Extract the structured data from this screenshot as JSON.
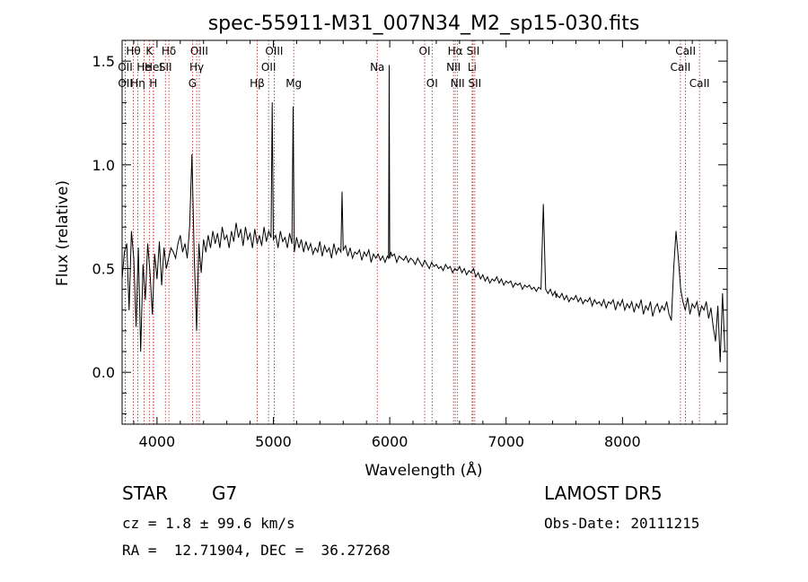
{
  "footer": {
    "object_type": "STAR",
    "subclass": "G7",
    "survey": "LAMOST DR5",
    "velocity": "cz = 1.8 ± 99.6 km/s",
    "obs_date": "Obs-Date: 20111215",
    "coords": "RA =  12.71904, DEC =  36.27268"
  },
  "chart_data": {
    "type": "line",
    "title": "spec-55911-M31_007N34_M2_sp15-030.fits",
    "xlabel": "Wavelength (Å)",
    "ylabel": "Flux (relative)",
    "xlim": [
      3700,
      8900
    ],
    "ylim": [
      -0.25,
      1.6
    ],
    "xticks": [
      4000,
      5000,
      6000,
      7000,
      8000
    ],
    "yticks": [
      0.0,
      0.5,
      1.0,
      1.5
    ],
    "ytick_labels": [
      "0.0",
      "0.5",
      "1.0",
      "1.5"
    ],
    "grid": false,
    "line_color": "#000000",
    "marker_color": "#b22222",
    "series": [
      {
        "x": [
          3700,
          3720,
          3740,
          3760,
          3780,
          3800,
          3820,
          3840,
          3860,
          3880,
          3900,
          3920,
          3940,
          3960,
          3980,
          4000,
          4020,
          4040,
          4060,
          4080,
          4100,
          4120,
          4140,
          4160,
          4180,
          4200,
          4220,
          4240,
          4260,
          4280,
          4300,
          4320,
          4340,
          4360,
          4380,
          4400,
          4420,
          4440,
          4460,
          4480,
          4500,
          4520,
          4540,
          4560,
          4580,
          4600,
          4620,
          4640,
          4660,
          4680,
          4700,
          4720,
          4740,
          4760,
          4780,
          4800,
          4820,
          4840,
          4860,
          4880,
          4900,
          4920,
          4940,
          4960,
          4980,
          4990,
          5000,
          5020,
          5040,
          5060,
          5080,
          5100,
          5120,
          5140,
          5160,
          5170,
          5180,
          5200,
          5220,
          5240,
          5260,
          5280,
          5300,
          5320,
          5340,
          5360,
          5380,
          5400,
          5420,
          5440,
          5460,
          5480,
          5500,
          5520,
          5540,
          5560,
          5580,
          5590,
          5600,
          5620,
          5640,
          5660,
          5680,
          5700,
          5720,
          5740,
          5760,
          5780,
          5800,
          5820,
          5840,
          5860,
          5880,
          5900,
          5920,
          5940,
          5960,
          5980,
          5990,
          5995,
          6000,
          6010,
          6020,
          6040,
          6060,
          6080,
          6100,
          6120,
          6140,
          6160,
          6180,
          6200,
          6220,
          6240,
          6260,
          6280,
          6300,
          6320,
          6340,
          6360,
          6380,
          6400,
          6420,
          6440,
          6460,
          6480,
          6500,
          6520,
          6540,
          6560,
          6580,
          6600,
          6620,
          6640,
          6660,
          6680,
          6700,
          6720,
          6740,
          6760,
          6780,
          6800,
          6820,
          6840,
          6860,
          6880,
          6900,
          6920,
          6940,
          6960,
          6980,
          7000,
          7020,
          7040,
          7060,
          7080,
          7100,
          7120,
          7140,
          7160,
          7180,
          7200,
          7220,
          7240,
          7260,
          7280,
          7300,
          7320,
          7340,
          7360,
          7380,
          7400,
          7420,
          7430,
          7435,
          7440,
          7460,
          7480,
          7500,
          7520,
          7540,
          7560,
          7580,
          7600,
          7620,
          7640,
          7660,
          7680,
          7700,
          7720,
          7740,
          7760,
          7780,
          7800,
          7820,
          7840,
          7860,
          7880,
          7900,
          7920,
          7940,
          7960,
          7980,
          8000,
          8020,
          8040,
          8060,
          8080,
          8100,
          8120,
          8140,
          8160,
          8180,
          8200,
          8220,
          8240,
          8260,
          8280,
          8300,
          8320,
          8340,
          8360,
          8380,
          8400,
          8420,
          8440,
          8460,
          8480,
          8500,
          8520,
          8540,
          8560,
          8580,
          8600,
          8620,
          8640,
          8660,
          8680,
          8700,
          8720,
          8740,
          8760,
          8780,
          8800,
          8820,
          8840,
          8860,
          8880
        ],
        "y": [
          0.45,
          0.58,
          0.62,
          0.3,
          0.68,
          0.55,
          0.22,
          0.6,
          0.1,
          0.52,
          0.35,
          0.62,
          0.48,
          0.28,
          0.57,
          0.45,
          0.63,
          0.42,
          0.6,
          0.5,
          0.55,
          0.6,
          0.58,
          0.55,
          0.62,
          0.66,
          0.58,
          0.62,
          0.55,
          0.7,
          1.05,
          0.55,
          0.2,
          0.62,
          0.48,
          0.64,
          0.58,
          0.66,
          0.6,
          0.68,
          0.62,
          0.67,
          0.6,
          0.7,
          0.64,
          0.66,
          0.6,
          0.68,
          0.63,
          0.72,
          0.65,
          0.69,
          0.61,
          0.7,
          0.64,
          0.67,
          0.6,
          0.69,
          0.62,
          0.66,
          0.61,
          0.7,
          0.63,
          0.68,
          0.65,
          1.3,
          0.64,
          0.66,
          0.6,
          0.68,
          0.63,
          0.65,
          0.6,
          0.67,
          0.62,
          1.28,
          0.58,
          0.65,
          0.6,
          0.64,
          0.58,
          0.63,
          0.59,
          0.62,
          0.57,
          0.6,
          0.58,
          0.63,
          0.56,
          0.61,
          0.58,
          0.6,
          0.55,
          0.62,
          0.57,
          0.6,
          0.58,
          0.87,
          0.59,
          0.61,
          0.56,
          0.6,
          0.55,
          0.58,
          0.57,
          0.59,
          0.54,
          0.58,
          0.56,
          0.59,
          0.53,
          0.57,
          0.55,
          0.57,
          0.54,
          0.56,
          0.53,
          0.56,
          0.55,
          1.48,
          0.55,
          0.58,
          0.56,
          0.57,
          0.53,
          0.56,
          0.55,
          0.54,
          0.56,
          0.53,
          0.55,
          0.54,
          0.52,
          0.55,
          0.53,
          0.51,
          0.54,
          0.52,
          0.5,
          0.53,
          0.51,
          0.52,
          0.5,
          0.51,
          0.49,
          0.52,
          0.5,
          0.51,
          0.48,
          0.5,
          0.49,
          0.51,
          0.48,
          0.5,
          0.47,
          0.49,
          0.48,
          0.5,
          0.46,
          0.48,
          0.45,
          0.47,
          0.44,
          0.46,
          0.43,
          0.45,
          0.44,
          0.46,
          0.43,
          0.45,
          0.42,
          0.44,
          0.43,
          0.44,
          0.41,
          0.43,
          0.42,
          0.43,
          0.4,
          0.42,
          0.41,
          0.42,
          0.4,
          0.41,
          0.39,
          0.41,
          0.4,
          0.81,
          0.4,
          0.38,
          0.4,
          0.37,
          0.39,
          0.36,
          0.38,
          0.37,
          0.36,
          0.38,
          0.35,
          0.37,
          0.34,
          0.36,
          0.35,
          0.37,
          0.34,
          0.36,
          0.33,
          0.35,
          0.34,
          0.36,
          0.32,
          0.35,
          0.33,
          0.34,
          0.32,
          0.35,
          0.31,
          0.34,
          0.33,
          0.35,
          0.3,
          0.34,
          0.32,
          0.35,
          0.3,
          0.33,
          0.31,
          0.34,
          0.29,
          0.33,
          0.31,
          0.35,
          0.28,
          0.32,
          0.3,
          0.34,
          0.27,
          0.31,
          0.33,
          0.29,
          0.32,
          0.3,
          0.34,
          0.28,
          0.25,
          0.5,
          0.68,
          0.55,
          0.4,
          0.34,
          0.3,
          0.36,
          0.28,
          0.33,
          0.31,
          0.34,
          0.27,
          0.32,
          0.3,
          0.34,
          0.26,
          0.31,
          0.22,
          0.15,
          0.32,
          0.05,
          0.38,
          0.1
        ]
      }
    ],
    "line_markers": [
      {
        "label": "Hθ",
        "x": 3797,
        "row": 1
      },
      {
        "label": "OII",
        "x": 3727,
        "row": 2
      },
      {
        "label": "OII",
        "x": 3728,
        "row": 3
      },
      {
        "label": "He",
        "x": 3889,
        "row": 2
      },
      {
        "label": "Hη",
        "x": 3835,
        "row": 3
      },
      {
        "label": "K",
        "x": 3934,
        "row": 1
      },
      {
        "label": "HeI",
        "x": 3970,
        "row": 2
      },
      {
        "label": "H",
        "x": 3968,
        "row": 3
      },
      {
        "label": "Hδ",
        "x": 4102,
        "row": 1
      },
      {
        "label": "SII",
        "x": 4072,
        "row": 2
      },
      {
        "label": "OIII",
        "x": 4363,
        "row": 1
      },
      {
        "label": "Hγ",
        "x": 4341,
        "row": 2
      },
      {
        "label": "G",
        "x": 4305,
        "row": 3
      },
      {
        "label": "Hβ",
        "x": 4861,
        "row": 3
      },
      {
        "label": "OIII",
        "x": 5007,
        "row": 1
      },
      {
        "label": "OII",
        "x": 4959,
        "row": 2
      },
      {
        "label": "Mg",
        "x": 5175,
        "row": 3
      },
      {
        "label": "Na",
        "x": 5893,
        "row": 2
      },
      {
        "label": "OI",
        "x": 6300,
        "row": 1
      },
      {
        "label": "OI",
        "x": 6364,
        "row": 3
      },
      {
        "label": "Hα",
        "x": 6563,
        "row": 1
      },
      {
        "label": "NII",
        "x": 6548,
        "row": 2
      },
      {
        "label": "NII",
        "x": 6583,
        "row": 3
      },
      {
        "label": "SII",
        "x": 6716,
        "row": 1
      },
      {
        "label": "Li",
        "x": 6708,
        "row": 2
      },
      {
        "label": "SII",
        "x": 6731,
        "row": 3
      },
      {
        "label": "CaII",
        "x": 8542,
        "row": 1
      },
      {
        "label": "CaII",
        "x": 8498,
        "row": 2
      },
      {
        "label": "CaII",
        "x": 8662,
        "row": 3
      }
    ]
  }
}
